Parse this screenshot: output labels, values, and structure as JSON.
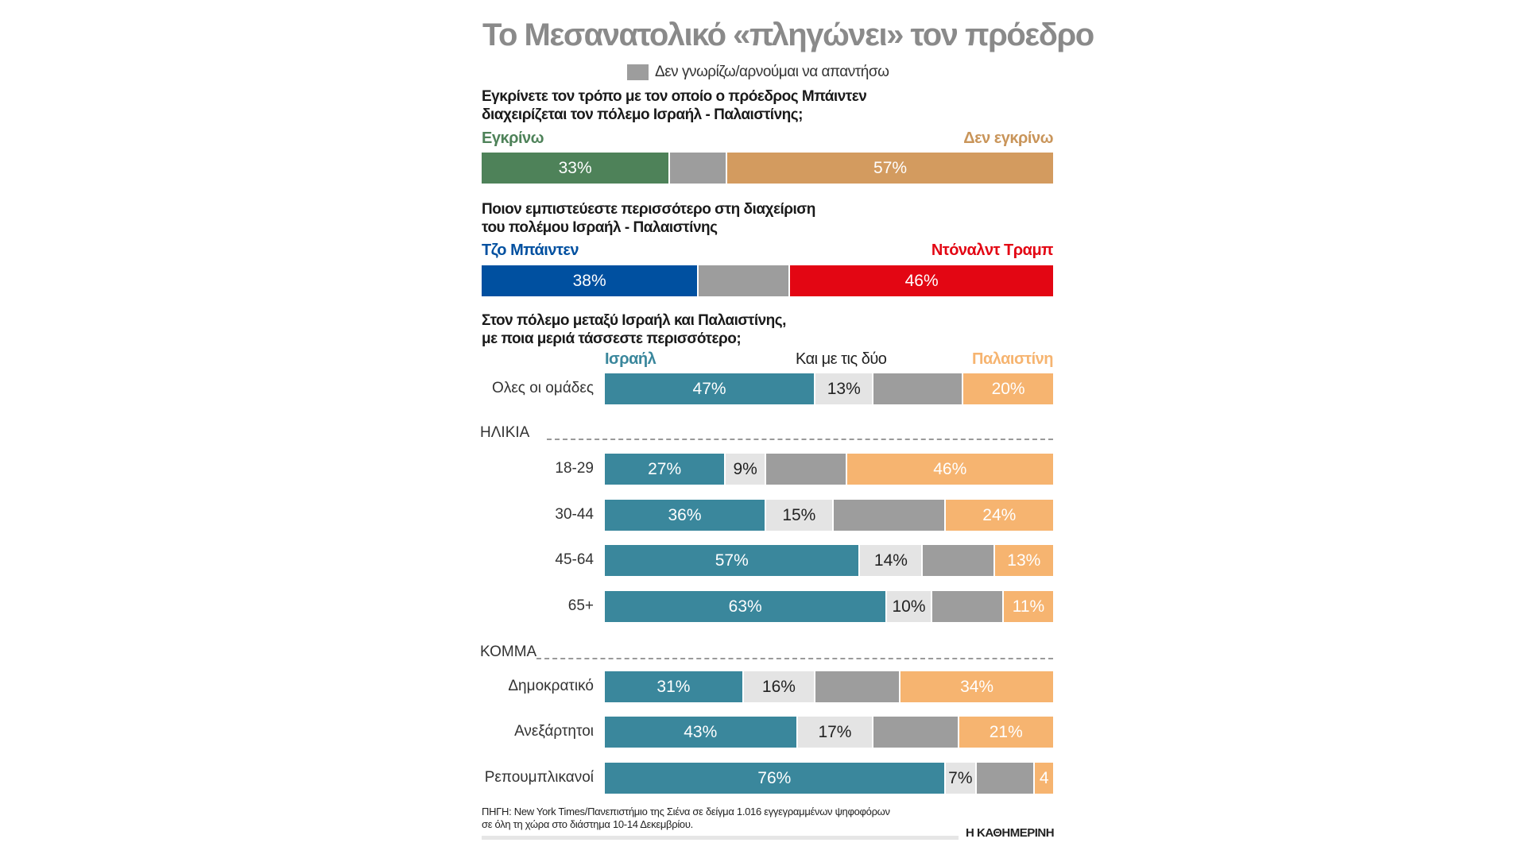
{
  "title": "Το Μεσανατολικό «πληγώνει» τον πρόεδρο",
  "legend": {
    "label": "Δεν γνωρίζω/αρνούμαι να απαντήσω",
    "color": "#9d9d9d"
  },
  "colors": {
    "approve": "#4e8259",
    "disapprove": "#d39b5f",
    "disapprove_text": "#c9955a",
    "biden": "#0050a0",
    "trump": "#e30613",
    "israel": "#3a879c",
    "both": "#e4e4e4",
    "dk": "#9d9d9d",
    "palestine": "#f6b470"
  },
  "chart_data": [
    {
      "type": "bar",
      "stacked": true,
      "orientation": "horizontal",
      "question": "Εγκρίνετε τον τρόπο με τον οποίο ο πρόεδρος Μπάιντεν διαχειρίζεται τον πόλεμο Ισραήλ - Παλαιστίνης;",
      "question_lines": [
        "Εγκρίνετε τον τρόπο με τον οποίο ο πρόεδρος Μπάιντεν",
        "διαχειρίζεται τον πόλεμο Ισραήλ - Παλαιστίνης;"
      ],
      "series": [
        {
          "name": "Εγκρίνω",
          "value": 33,
          "label": "33%"
        },
        {
          "name": "Δεν γνωρίζω/αρνούμαι να απαντήσω",
          "value": 10,
          "label": ""
        },
        {
          "name": "Δεν εγκρίνω",
          "value": 57,
          "label": "57%"
        }
      ]
    },
    {
      "type": "bar",
      "stacked": true,
      "orientation": "horizontal",
      "question": "Ποιον εμπιστεύεστε περισσότερο στη διαχείριση του πολέμου Ισραήλ - Παλαιστίνης",
      "question_lines": [
        "Ποιον εμπιστεύεστε περισσότερο στη διαχείριση",
        "του πολέμου Ισραήλ - Παλαιστίνης"
      ],
      "series": [
        {
          "name": "Τζο Μπάιντεν",
          "value": 38,
          "label": "38%"
        },
        {
          "name": "Δεν γνωρίζω/αρνούμαι να απαντήσω",
          "value": 16,
          "label": ""
        },
        {
          "name": "Ντόναλντ Τραμπ",
          "value": 46,
          "label": "46%"
        }
      ]
    },
    {
      "type": "bar",
      "stacked": true,
      "orientation": "horizontal",
      "question": "Στον πόλεμο μεταξύ Ισραήλ και Παλαιστίνης, με ποια μεριά τάσσεστε περισσότερο;",
      "question_lines": [
        "Στον πόλεμο μεταξύ Ισραήλ και Παλαιστίνης,",
        "με ποια μεριά τάσσεστε περισσότερο;"
      ],
      "series_names": [
        "Ισραήλ",
        "Και με τις δύο",
        "Δεν γνωρίζω/αρνούμαι να απαντήσω",
        "Παλαιστίνη"
      ],
      "groups": [
        {
          "title": "",
          "rows": [
            {
              "category": "Ολες οι ομάδες",
              "values": [
                47,
                13,
                20,
                20
              ],
              "labels": [
                "47%",
                "13%",
                "",
                "20%"
              ]
            }
          ]
        },
        {
          "title": "ΗΛΙΚΙΑ",
          "rows": [
            {
              "category": "18-29",
              "values": [
                27,
                9,
                18,
                46
              ],
              "labels": [
                "27%",
                "9%",
                "",
                "46%"
              ]
            },
            {
              "category": "30-44",
              "values": [
                36,
                15,
                25,
                24
              ],
              "labels": [
                "36%",
                "15%",
                "",
                "24%"
              ]
            },
            {
              "category": "45-64",
              "values": [
                57,
                14,
                16,
                13
              ],
              "labels": [
                "57%",
                "14%",
                "",
                "13%"
              ]
            },
            {
              "category": "65+",
              "values": [
                63,
                10,
                16,
                11
              ],
              "labels": [
                "63%",
                "10%",
                "",
                "11%"
              ]
            }
          ]
        },
        {
          "title": "ΚΟΜΜΑ",
          "rows": [
            {
              "category": "Δημοκρατικό",
              "values": [
                31,
                16,
                19,
                34
              ],
              "labels": [
                "31%",
                "16%",
                "",
                "34%"
              ]
            },
            {
              "category": "Ανεξάρτητοι",
              "values": [
                43,
                17,
                19,
                21
              ],
              "labels": [
                "43%",
                "17%",
                "",
                "21%"
              ]
            },
            {
              "category": "Ρεπουμπλικανοί",
              "values": [
                76,
                7,
                13,
                4
              ],
              "labels": [
                "76%",
                "7%",
                "",
                "4"
              ]
            }
          ]
        }
      ]
    }
  ],
  "footnote": [
    "ΠΗΓΗ: New York Times/Πανεπιστήμιο της Σιένα σε δείγμα 1.016 εγγεγραμμένων ψηφοφόρων",
    "σε όλη τη χώρα στο διάστημα 10-14 Δεκεμβρίου."
  ],
  "logo": "Η ΚΑΘΗΜΕΡΙΝΗ"
}
